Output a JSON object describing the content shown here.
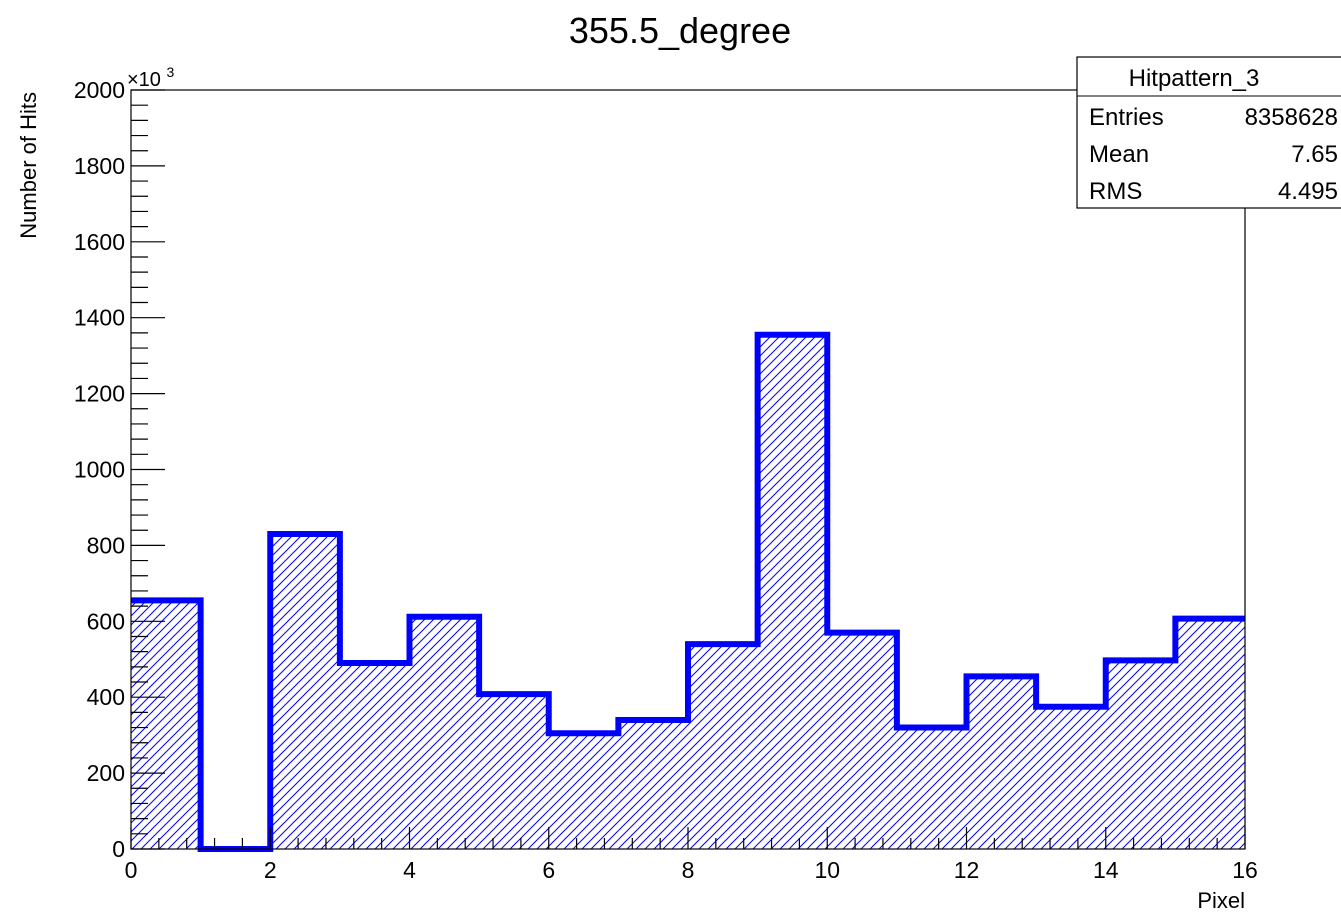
{
  "chart_data": {
    "type": "histogram",
    "title": "355.5_degree",
    "xlabel": "Pixel",
    "ylabel": "Number of Hits",
    "y_multiplier_label": "×10",
    "y_multiplier_exponent": "3",
    "xlim": [
      0,
      16
    ],
    "ylim": [
      0,
      2000
    ],
    "x_ticks": [
      0,
      2,
      4,
      6,
      8,
      10,
      12,
      14,
      16
    ],
    "y_ticks": [
      0,
      200,
      400,
      600,
      800,
      1000,
      1200,
      1400,
      1600,
      1800,
      2000
    ],
    "bin_edges": [
      0,
      1,
      2,
      3,
      4,
      5,
      6,
      7,
      8,
      9,
      10,
      11,
      12,
      13,
      14,
      15,
      16
    ],
    "values": [
      655,
      0,
      830,
      490,
      612,
      408,
      305,
      340,
      540,
      1355,
      570,
      320,
      455,
      375,
      497,
      607
    ],
    "series_color": "#0000ff",
    "grid": false,
    "stats_box": {
      "name": "Hitpattern_3",
      "placement": "top-right",
      "rows": [
        {
          "label": "Entries",
          "value": "8358628"
        },
        {
          "label": "Mean",
          "value": "7.65"
        },
        {
          "label": "RMS",
          "value": "4.495"
        }
      ]
    }
  }
}
